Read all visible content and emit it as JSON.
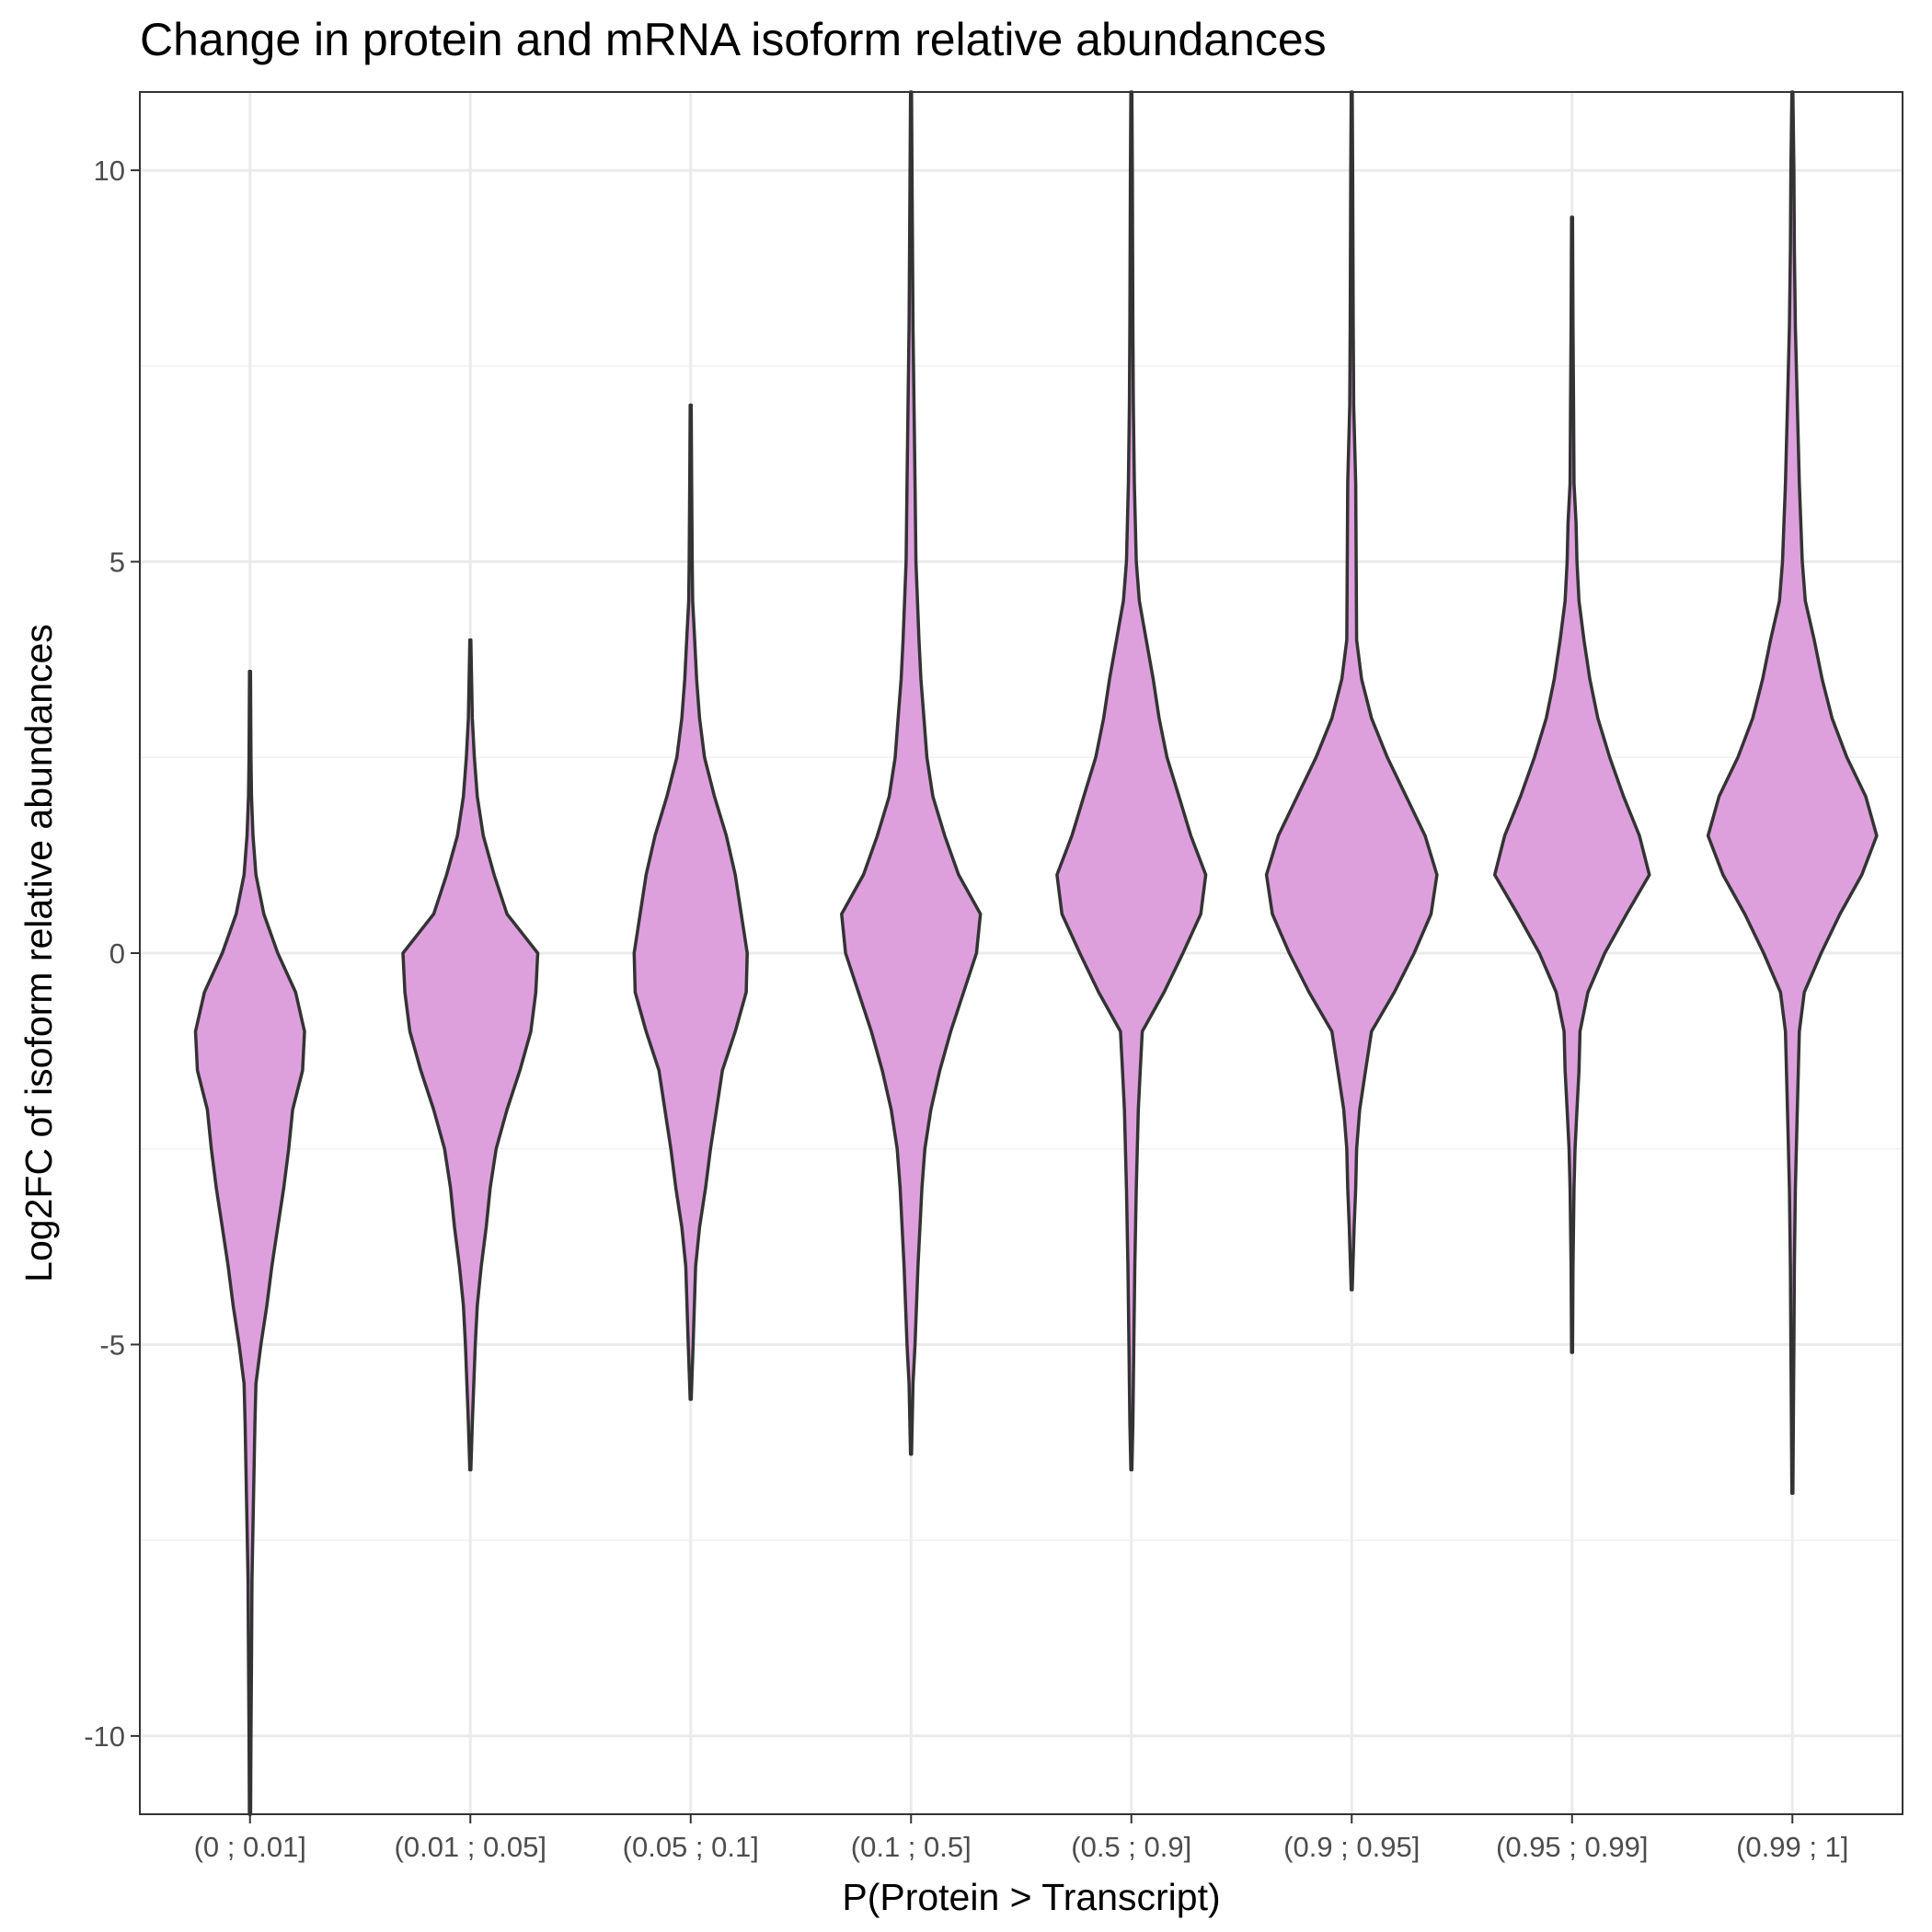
{
  "chart_data": {
    "type": "violin",
    "title": "Change in protein and mRNA isoform relative abundances",
    "xlabel": "P(Protein > Transcript)",
    "ylabel": "Log2FC of isoform relative abundances",
    "ylim": [
      -11,
      11
    ],
    "yticks": [
      -10,
      -5,
      0,
      5,
      10
    ],
    "grid": true,
    "fill_color": "#DDA0DD",
    "outline_color": "#333333",
    "categories": [
      "(0 ; 0.01]",
      "(0.01 ; 0.05]",
      "(0.05 ; 0.1]",
      "(0.1 ; 0.5]",
      "(0.5 ; 0.9]",
      "(0.9 ; 0.95]",
      "(0.95 ; 0.99]",
      "(0.99 ; 1]"
    ],
    "violins": [
      {
        "category": "(0 ; 0.01]",
        "min": -11,
        "max": 3.6,
        "profile": [
          [
            3.6,
            0.005
          ],
          [
            2.5,
            0.01
          ],
          [
            2.0,
            0.015
          ],
          [
            1.5,
            0.03
          ],
          [
            1.0,
            0.06
          ],
          [
            0.5,
            0.14
          ],
          [
            0,
            0.28
          ],
          [
            -0.5,
            0.46
          ],
          [
            -1.0,
            0.55
          ],
          [
            -1.5,
            0.53
          ],
          [
            -2.0,
            0.43
          ],
          [
            -2.5,
            0.39
          ],
          [
            -3.0,
            0.34
          ],
          [
            -3.5,
            0.28
          ],
          [
            -4.0,
            0.22
          ],
          [
            -4.5,
            0.17
          ],
          [
            -5.0,
            0.11
          ],
          [
            -5.5,
            0.06
          ],
          [
            -6.0,
            0.05
          ],
          [
            -7.0,
            0.035
          ],
          [
            -8.0,
            0.02
          ],
          [
            -9.0,
            0.015
          ],
          [
            -10.0,
            0.01
          ],
          [
            -11.0,
            0.006
          ]
        ]
      },
      {
        "category": "(0.01 ; 0.05]",
        "min": -6.6,
        "max": 4.0,
        "profile": [
          [
            4.0,
            0.005
          ],
          [
            3.0,
            0.02
          ],
          [
            2.5,
            0.04
          ],
          [
            2.0,
            0.07
          ],
          [
            1.5,
            0.13
          ],
          [
            1.0,
            0.24
          ],
          [
            0.5,
            0.37
          ],
          [
            0,
            0.68
          ],
          [
            -0.5,
            0.66
          ],
          [
            -1.0,
            0.61
          ],
          [
            -1.5,
            0.5
          ],
          [
            -2.0,
            0.37
          ],
          [
            -2.5,
            0.26
          ],
          [
            -3.0,
            0.2
          ],
          [
            -3.5,
            0.16
          ],
          [
            -4.0,
            0.11
          ],
          [
            -4.5,
            0.07
          ],
          [
            -5.0,
            0.05
          ],
          [
            -5.5,
            0.035
          ],
          [
            -6.0,
            0.02
          ],
          [
            -6.6,
            0.005
          ]
        ]
      },
      {
        "category": "(0.05 ; 0.1]",
        "min": -5.7,
        "max": 7.0,
        "profile": [
          [
            7.0,
            0.005
          ],
          [
            6.0,
            0.01
          ],
          [
            5.0,
            0.015
          ],
          [
            4.5,
            0.02
          ],
          [
            4.0,
            0.04
          ],
          [
            3.5,
            0.06
          ],
          [
            3.0,
            0.09
          ],
          [
            2.5,
            0.14
          ],
          [
            2.0,
            0.24
          ],
          [
            1.5,
            0.36
          ],
          [
            1.0,
            0.45
          ],
          [
            0.5,
            0.51
          ],
          [
            0,
            0.57
          ],
          [
            -0.5,
            0.56
          ],
          [
            -1.0,
            0.45
          ],
          [
            -1.5,
            0.32
          ],
          [
            -2.0,
            0.26
          ],
          [
            -2.5,
            0.2
          ],
          [
            -3.0,
            0.15
          ],
          [
            -3.5,
            0.09
          ],
          [
            -4.0,
            0.05
          ],
          [
            -5.0,
            0.025
          ],
          [
            -5.7,
            0.005
          ]
        ]
      },
      {
        "category": "(0.1 ; 0.5]",
        "min": -6.4,
        "max": 11,
        "profile": [
          [
            11,
            0.005
          ],
          [
            10,
            0.01
          ],
          [
            8.0,
            0.02
          ],
          [
            7.0,
            0.03
          ],
          [
            6.0,
            0.04
          ],
          [
            5.0,
            0.05
          ],
          [
            4.0,
            0.08
          ],
          [
            3.5,
            0.1
          ],
          [
            3.0,
            0.13
          ],
          [
            2.5,
            0.16
          ],
          [
            2.0,
            0.22
          ],
          [
            1.5,
            0.34
          ],
          [
            1.0,
            0.48
          ],
          [
            0.5,
            0.7
          ],
          [
            0,
            0.66
          ],
          [
            -0.5,
            0.53
          ],
          [
            -1.0,
            0.4
          ],
          [
            -1.5,
            0.29
          ],
          [
            -2.0,
            0.2
          ],
          [
            -2.5,
            0.14
          ],
          [
            -3.0,
            0.11
          ],
          [
            -4.0,
            0.07
          ],
          [
            -5.0,
            0.04
          ],
          [
            -5.5,
            0.02
          ],
          [
            -6.4,
            0.005
          ]
        ]
      },
      {
        "category": "(0.5 ; 0.9]",
        "min": -6.6,
        "max": 11,
        "profile": [
          [
            11,
            0.005
          ],
          [
            10,
            0.01
          ],
          [
            8.0,
            0.015
          ],
          [
            7.0,
            0.02
          ],
          [
            6.0,
            0.03
          ],
          [
            5.0,
            0.05
          ],
          [
            4.5,
            0.08
          ],
          [
            4.0,
            0.15
          ],
          [
            3.5,
            0.22
          ],
          [
            3.0,
            0.28
          ],
          [
            2.5,
            0.36
          ],
          [
            2.0,
            0.48
          ],
          [
            1.5,
            0.6
          ],
          [
            1.0,
            0.75
          ],
          [
            0.5,
            0.7
          ],
          [
            0,
            0.52
          ],
          [
            -0.5,
            0.33
          ],
          [
            -1.0,
            0.11
          ],
          [
            -1.5,
            0.09
          ],
          [
            -2.0,
            0.07
          ],
          [
            -2.5,
            0.06
          ],
          [
            -3.0,
            0.05
          ],
          [
            -4.0,
            0.035
          ],
          [
            -5.0,
            0.025
          ],
          [
            -6.0,
            0.015
          ],
          [
            -6.6,
            0.005
          ]
        ]
      },
      {
        "category": "(0.9 ; 0.95]",
        "min": -4.3,
        "max": 11,
        "profile": [
          [
            11,
            0.005
          ],
          [
            10,
            0.01
          ],
          [
            8.0,
            0.015
          ],
          [
            7.0,
            0.02
          ],
          [
            6.5,
            0.03
          ],
          [
            6.0,
            0.04
          ],
          [
            5.0,
            0.045
          ],
          [
            4.0,
            0.05
          ],
          [
            3.5,
            0.1
          ],
          [
            3.0,
            0.2
          ],
          [
            2.5,
            0.36
          ],
          [
            2.0,
            0.55
          ],
          [
            1.5,
            0.74
          ],
          [
            1.0,
            0.86
          ],
          [
            0.5,
            0.8
          ],
          [
            0,
            0.63
          ],
          [
            -0.5,
            0.43
          ],
          [
            -1.0,
            0.2
          ],
          [
            -1.5,
            0.14
          ],
          [
            -2.0,
            0.08
          ],
          [
            -2.5,
            0.05
          ],
          [
            -3.0,
            0.04
          ],
          [
            -3.5,
            0.025
          ],
          [
            -4.3,
            0.005
          ]
        ]
      },
      {
        "category": "(0.95 ; 0.99]",
        "min": -5.1,
        "max": 9.4,
        "profile": [
          [
            9.4,
            0.005
          ],
          [
            8.0,
            0.01
          ],
          [
            7.0,
            0.015
          ],
          [
            6.0,
            0.02
          ],
          [
            5.5,
            0.04
          ],
          [
            5.0,
            0.05
          ],
          [
            4.5,
            0.07
          ],
          [
            4.0,
            0.12
          ],
          [
            3.5,
            0.18
          ],
          [
            3.0,
            0.26
          ],
          [
            2.5,
            0.38
          ],
          [
            2.0,
            0.52
          ],
          [
            1.5,
            0.68
          ],
          [
            1.0,
            0.78
          ],
          [
            0.5,
            0.55
          ],
          [
            0,
            0.33
          ],
          [
            -0.5,
            0.16
          ],
          [
            -1.0,
            0.08
          ],
          [
            -1.5,
            0.07
          ],
          [
            -2.0,
            0.05
          ],
          [
            -2.5,
            0.03
          ],
          [
            -3.0,
            0.02
          ],
          [
            -4.0,
            0.01
          ],
          [
            -5.1,
            0.005
          ]
        ]
      },
      {
        "category": "(0.99 ; 1]",
        "min": -6.9,
        "max": 11,
        "profile": [
          [
            11,
            0.005
          ],
          [
            10,
            0.015
          ],
          [
            9.0,
            0.02
          ],
          [
            8.0,
            0.03
          ],
          [
            7.0,
            0.05
          ],
          [
            6.0,
            0.07
          ],
          [
            5.0,
            0.1
          ],
          [
            4.5,
            0.13
          ],
          [
            4.0,
            0.22
          ],
          [
            3.5,
            0.3
          ],
          [
            3.0,
            0.4
          ],
          [
            2.5,
            0.55
          ],
          [
            2.0,
            0.74
          ],
          [
            1.5,
            0.85
          ],
          [
            1.0,
            0.7
          ],
          [
            0.5,
            0.48
          ],
          [
            0,
            0.29
          ],
          [
            -0.5,
            0.12
          ],
          [
            -1.0,
            0.07
          ],
          [
            -2.0,
            0.05
          ],
          [
            -3.0,
            0.03
          ],
          [
            -4.0,
            0.02
          ],
          [
            -5.0,
            0.015
          ],
          [
            -6.0,
            0.01
          ],
          [
            -6.9,
            0.005
          ]
        ]
      }
    ]
  }
}
